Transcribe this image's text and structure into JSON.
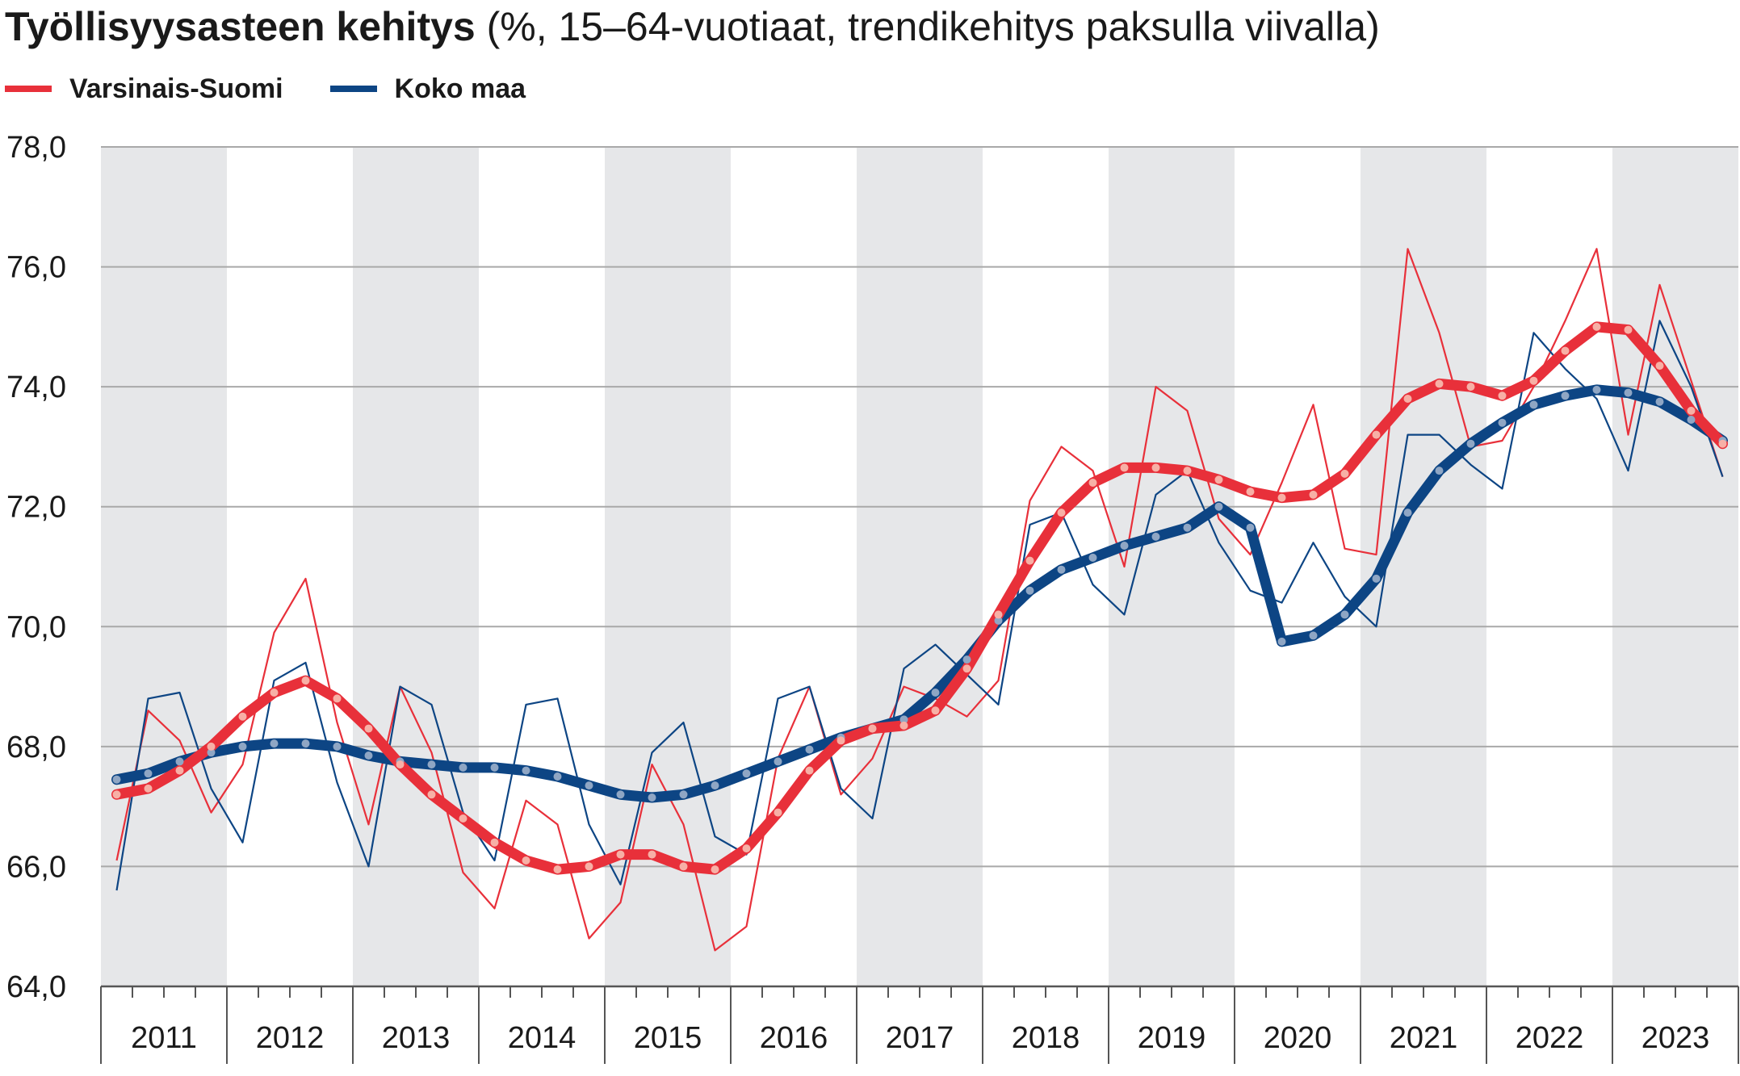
{
  "title": {
    "main": "Työllisyysasteen kehitys",
    "sub": " (%, 15–64-vuotiaat, trendikehitys paksulla viivalla)"
  },
  "legend": [
    {
      "name": "Varsinais-Suomi",
      "color": "#e8303a"
    },
    {
      "name": "Koko maa",
      "color": "#0d4584"
    }
  ],
  "chart_data": {
    "type": "line",
    "title": "Työllisyysasteen kehitys",
    "subtitle": "(%, 15–64-vuotiaat, trendikehitys paksulla viivalla)",
    "xlabel": "",
    "ylabel": "",
    "ylim": [
      64,
      78
    ],
    "y_ticks": [
      "64,0",
      "66,0",
      "68,0",
      "70,0",
      "72,0",
      "74,0",
      "76,0",
      "78,0"
    ],
    "y_tick_values": [
      64,
      66,
      68,
      70,
      72,
      74,
      76,
      78
    ],
    "x_categories": [
      "2011",
      "2012",
      "2013",
      "2014",
      "2015",
      "2016",
      "2017",
      "2018",
      "2019",
      "2020",
      "2021",
      "2022",
      "2023"
    ],
    "x_unit": "quarter",
    "grid": true,
    "shaded_alternate_years": true,
    "legend_position": "top-left",
    "quarters": [
      "2011Q1",
      "2011Q2",
      "2011Q3",
      "2011Q4",
      "2012Q1",
      "2012Q2",
      "2012Q3",
      "2012Q4",
      "2013Q1",
      "2013Q2",
      "2013Q3",
      "2013Q4",
      "2014Q1",
      "2014Q2",
      "2014Q3",
      "2014Q4",
      "2015Q1",
      "2015Q2",
      "2015Q3",
      "2015Q4",
      "2016Q1",
      "2016Q2",
      "2016Q3",
      "2016Q4",
      "2017Q1",
      "2017Q2",
      "2017Q3",
      "2017Q4",
      "2018Q1",
      "2018Q2",
      "2018Q3",
      "2018Q4",
      "2019Q1",
      "2019Q2",
      "2019Q3",
      "2019Q4",
      "2020Q1",
      "2020Q2",
      "2020Q3",
      "2020Q4",
      "2021Q1",
      "2021Q2",
      "2021Q3",
      "2021Q4",
      "2022Q1",
      "2022Q2",
      "2022Q3",
      "2022Q4",
      "2023Q1",
      "2023Q2",
      "2023Q3",
      "2023Q4"
    ],
    "series": [
      {
        "name": "Varsinais-Suomi",
        "color": "#e8303a",
        "trend": [
          67.2,
          67.3,
          67.6,
          68.0,
          68.5,
          68.9,
          69.1,
          68.8,
          68.3,
          67.7,
          67.2,
          66.8,
          66.4,
          66.1,
          65.95,
          66.0,
          66.2,
          66.2,
          66.0,
          65.95,
          66.3,
          66.9,
          67.6,
          68.1,
          68.3,
          68.35,
          68.6,
          69.3,
          70.2,
          71.1,
          71.9,
          72.4,
          72.65,
          72.65,
          72.6,
          72.45,
          72.25,
          72.15,
          72.2,
          72.55,
          73.2,
          73.8,
          74.05,
          74.0,
          73.85,
          74.1,
          74.6,
          75.0,
          74.95,
          74.35,
          73.6,
          73.05
        ],
        "values": [
          66.1,
          68.6,
          68.1,
          66.9,
          67.7,
          69.9,
          70.8,
          68.4,
          66.7,
          69.0,
          67.9,
          65.9,
          65.3,
          67.1,
          66.7,
          64.8,
          65.4,
          67.7,
          66.7,
          64.6,
          65.0,
          67.8,
          69.0,
          67.2,
          67.8,
          69.0,
          68.8,
          68.5,
          69.1,
          72.1,
          73.0,
          72.6,
          71.0,
          74.0,
          73.6,
          71.8,
          71.2,
          72.4,
          73.7,
          71.3,
          71.2,
          76.3,
          74.9,
          73.0,
          73.1,
          74.0,
          75.1,
          76.3,
          73.2,
          75.7,
          74.1,
          72.5
        ]
      },
      {
        "name": "Koko maa",
        "color": "#0d4584",
        "trend": [
          67.45,
          67.55,
          67.75,
          67.9,
          68.0,
          68.05,
          68.05,
          68.0,
          67.85,
          67.75,
          67.7,
          67.65,
          67.65,
          67.6,
          67.5,
          67.35,
          67.2,
          67.15,
          67.2,
          67.35,
          67.55,
          67.75,
          67.95,
          68.15,
          68.3,
          68.45,
          68.9,
          69.45,
          70.1,
          70.6,
          70.95,
          71.15,
          71.35,
          71.5,
          71.65,
          72.0,
          71.65,
          69.75,
          69.85,
          70.2,
          70.8,
          71.9,
          72.6,
          73.05,
          73.4,
          73.7,
          73.85,
          73.95,
          73.9,
          73.75,
          73.45,
          73.1
        ],
        "values": [
          65.6,
          68.8,
          68.9,
          67.3,
          66.4,
          69.1,
          69.4,
          67.4,
          66.0,
          69.0,
          68.7,
          66.9,
          66.1,
          68.7,
          68.8,
          66.7,
          65.7,
          67.9,
          68.4,
          66.5,
          66.2,
          68.8,
          69.0,
          67.3,
          66.8,
          69.3,
          69.7,
          69.2,
          68.7,
          71.7,
          71.9,
          70.7,
          70.2,
          72.2,
          72.6,
          71.4,
          70.6,
          70.4,
          71.4,
          70.5,
          70.0,
          73.2,
          73.2,
          72.7,
          72.3,
          74.9,
          74.3,
          73.8,
          72.6,
          75.1,
          74.0,
          72.5
        ]
      }
    ]
  }
}
